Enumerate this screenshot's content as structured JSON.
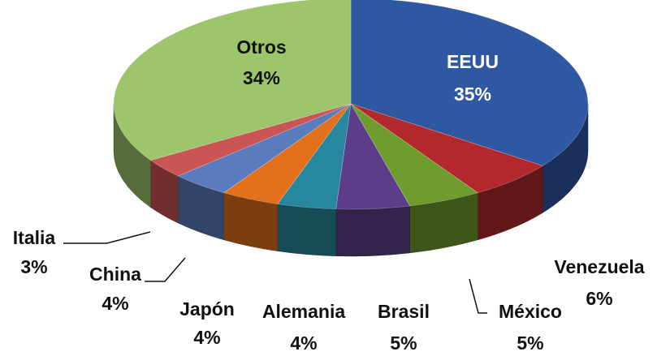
{
  "chart_data": {
    "type": "pie",
    "categories": [
      "EEUU",
      "Venezuela",
      "México",
      "Brasil",
      "Alemania",
      "Japón",
      "China",
      "Italia",
      "Otros"
    ],
    "values": [
      35,
      6,
      5,
      5,
      4,
      4,
      4,
      3,
      34
    ],
    "value_labels": [
      "35%",
      "6%",
      "5%",
      "5%",
      "4%",
      "4%",
      "4%",
      "3%",
      "34%"
    ],
    "colors": [
      "#2f58a3",
      "#b3292b",
      "#6f9c2f",
      "#5c3d8a",
      "#27879f",
      "#e2701d",
      "#5a7bbd",
      "#cb5454",
      "#9dc56b"
    ]
  }
}
